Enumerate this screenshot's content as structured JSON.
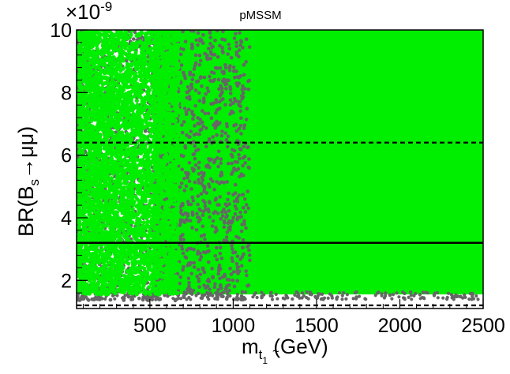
{
  "chart_data": {
    "type": "scatter",
    "title": "pMSSM",
    "xlabel": {
      "main": "m",
      "sub_tilde": "~",
      "sub": "t",
      "subsub": "1",
      "unit": " (GeV)"
    },
    "ylabel": {
      "pre": "BR(B",
      "sub": "s",
      "arrow": "→",
      "post": "μμ)"
    },
    "exponent_label": "×10",
    "exponent_power": "-9",
    "xlim": [
      60,
      2500
    ],
    "ylim": [
      1.1,
      10
    ],
    "x_ticks": [
      500,
      1000,
      1500,
      2000,
      2500
    ],
    "x_tick_labels": [
      "500",
      "1000",
      "1500",
      "2000",
      "2500"
    ],
    "y_ticks": [
      2,
      4,
      6,
      8,
      10
    ],
    "y_tick_labels": [
      "2",
      "4",
      "6",
      "8",
      "10"
    ],
    "grid": false,
    "series": [
      {
        "color": "#666666",
        "region": {
          "x_min": 60,
          "x_max": 2500,
          "y_min": 1.35,
          "y_max": 10.0
        },
        "sparse_edge_x": 320,
        "dense_from_x": 700
      },
      {
        "color": "#00ee00",
        "region": {
          "x_min": 70,
          "x_max": 2500,
          "y_min": 1.55,
          "y_max": 10.0
        },
        "sparse_edge_x": 350,
        "dense_from_x": 520
      }
    ],
    "reference_lines": [
      {
        "y": 3.2,
        "style": "solid",
        "color": "#000000"
      },
      {
        "y": 6.4,
        "style": "dashed",
        "color": "#000000"
      },
      {
        "y": 1.2,
        "style": "dashed",
        "color": "#000000"
      }
    ]
  }
}
